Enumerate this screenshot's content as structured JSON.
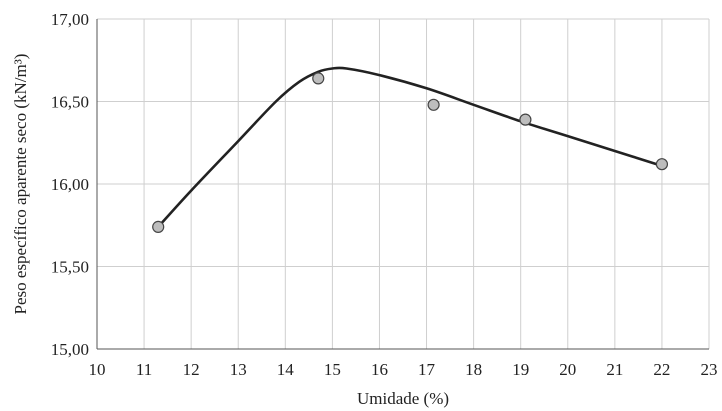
{
  "chart_data": {
    "type": "scatter",
    "title": "",
    "xlabel": "Umidade (%)",
    "ylabel": "Peso específico aparente seco (kN/m³)",
    "xlim": [
      10,
      23
    ],
    "ylim": [
      15.0,
      17.0
    ],
    "x_ticks": [
      10,
      11,
      12,
      13,
      14,
      15,
      16,
      17,
      18,
      19,
      20,
      21,
      22,
      23
    ],
    "x_tick_labels": [
      "10",
      "11",
      "12",
      "13",
      "14",
      "15",
      "16",
      "17",
      "18",
      "19",
      "20",
      "21",
      "22",
      "23"
    ],
    "y_ticks": [
      15.0,
      15.5,
      16.0,
      16.5,
      17.0
    ],
    "y_tick_labels": [
      "15,00",
      "15,50",
      "16,00",
      "16,50",
      "17,00"
    ],
    "grid": true,
    "series": [
      {
        "kind": "points",
        "x": [
          11.3,
          14.7,
          17.15,
          19.1,
          22.0
        ],
        "y": [
          15.74,
          16.64,
          16.48,
          16.39,
          16.12
        ],
        "marker_fill": "#bdbdbd",
        "marker_stroke": "#444444"
      },
      {
        "kind": "curve",
        "x": [
          11.3,
          12.0,
          13.0,
          13.8,
          14.3,
          14.7,
          15.0,
          15.3,
          16.0,
          17.0,
          18.0,
          19.0,
          20.0,
          21.0,
          22.0
        ],
        "y": [
          15.74,
          15.96,
          16.26,
          16.5,
          16.62,
          16.68,
          16.7,
          16.7,
          16.66,
          16.58,
          16.48,
          16.38,
          16.29,
          16.2,
          16.11
        ],
        "color": "#222222"
      }
    ]
  }
}
